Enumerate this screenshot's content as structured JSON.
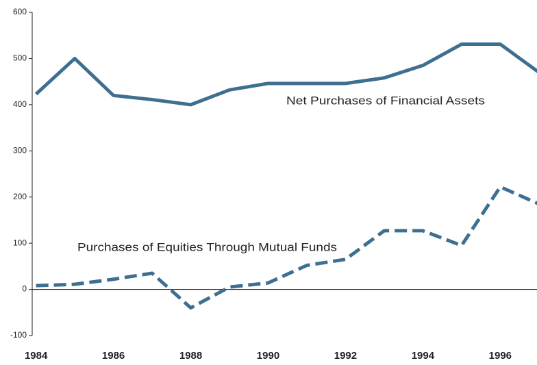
{
  "chart_data": {
    "type": "line",
    "x": [
      1984,
      1985,
      1986,
      1987,
      1988,
      1989,
      1990,
      1991,
      1992,
      1993,
      1994,
      1995,
      1996,
      1997
    ],
    "series": [
      {
        "name": "Net Purchases of Financial Assets",
        "color": "#3e6f91",
        "dash": false,
        "values": [
          423,
          500,
          420,
          411,
          400,
          432,
          446,
          446,
          446,
          458,
          485,
          531,
          531,
          470
        ]
      },
      {
        "name": "Purchases of Equities Through Mutual Funds",
        "color": "#3e6f91",
        "dash": true,
        "values": [
          8,
          11,
          22,
          35,
          -40,
          5,
          14,
          52,
          65,
          127,
          127,
          95,
          222,
          185
        ]
      }
    ],
    "xlim": [
      1983.9,
      1996.95
    ],
    "xticks": [
      1984,
      1986,
      1988,
      1990,
      1992,
      1994,
      1996
    ],
    "ylim": [
      -100,
      600
    ],
    "yticks": [
      -100,
      0,
      100,
      200,
      300,
      400,
      500,
      600
    ]
  }
}
